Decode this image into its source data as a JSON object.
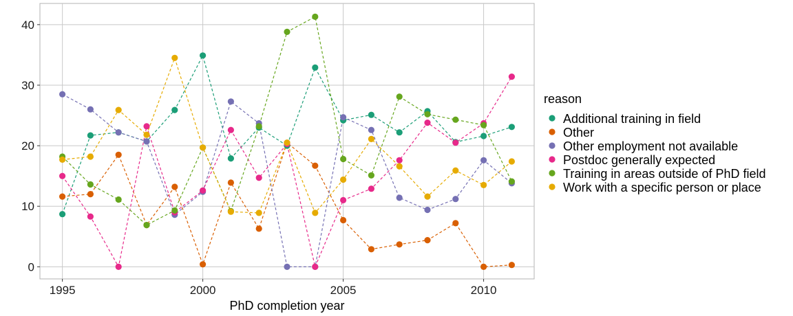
{
  "chart_data": {
    "type": "line",
    "xlabel": "PhD completion year",
    "ylabel": "",
    "x": [
      1995,
      1996,
      1997,
      1998,
      1999,
      2000,
      2001,
      2002,
      2003,
      2004,
      2005,
      2006,
      2007,
      2008,
      2009,
      2010,
      2011
    ],
    "xlim": [
      1994.2,
      2011.8
    ],
    "ylim": [
      -2,
      43.5
    ],
    "xticks": [
      1995,
      2000,
      2005,
      2010
    ],
    "yticks": [
      0,
      10,
      20,
      30,
      40
    ],
    "grid": true,
    "line_style": "dashed",
    "legend": {
      "title": "reason",
      "position": "right"
    },
    "series": [
      {
        "name": "Additional training in field",
        "color": "#1b9e77",
        "values": [
          8.7,
          21.7,
          22.2,
          20.7,
          25.9,
          34.9,
          17.9,
          23.0,
          20.0,
          32.9,
          24.2,
          25.1,
          22.2,
          25.7,
          20.6,
          21.6,
          23.1
        ]
      },
      {
        "name": "Other",
        "color": "#d95f02",
        "values": [
          11.6,
          12.0,
          18.5,
          6.9,
          13.2,
          0.4,
          13.9,
          6.3,
          20.5,
          16.7,
          7.7,
          2.9,
          3.7,
          4.4,
          7.2,
          0.0,
          0.3
        ]
      },
      {
        "name": "Other employment not available",
        "color": "#7570b3",
        "values": [
          28.5,
          26.0,
          22.2,
          20.7,
          8.6,
          12.4,
          27.3,
          23.7,
          0.0,
          0.0,
          24.7,
          22.6,
          11.4,
          9.4,
          11.2,
          17.6,
          13.8
        ]
      },
      {
        "name": "Postdoc generally expected",
        "color": "#e7298a",
        "values": [
          15.0,
          8.3,
          0.0,
          23.2,
          9.0,
          12.6,
          22.6,
          14.7,
          20.3,
          0.0,
          11.0,
          12.9,
          17.6,
          23.8,
          20.5,
          23.7,
          31.4
        ]
      },
      {
        "name": "Training in areas outside of PhD field",
        "color": "#66a61e",
        "values": [
          18.2,
          13.6,
          11.1,
          6.9,
          9.3,
          19.7,
          9.2,
          23.2,
          38.8,
          41.3,
          17.8,
          15.1,
          28.1,
          25.2,
          24.3,
          23.4,
          14.1
        ]
      },
      {
        "name": "Work with a specific person or place",
        "color": "#e6ab02",
        "values": [
          17.7,
          18.2,
          25.9,
          21.8,
          34.5,
          19.7,
          9.1,
          8.9,
          20.5,
          8.9,
          14.4,
          21.1,
          16.6,
          11.6,
          15.9,
          13.5,
          17.4
        ]
      }
    ]
  }
}
